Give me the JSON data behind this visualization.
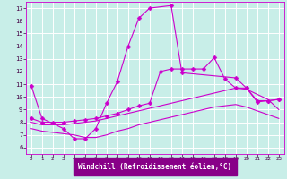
{
  "background_color": "#c8eee8",
  "plot_bg_color": "#c8eee8",
  "grid_color": "#ffffff",
  "line_color": "#cc00cc",
  "xlabel": "Windchill (Refroidissement éolien,°C)",
  "xlabel_bg": "#8800aa",
  "xlim": [
    -0.5,
    23.5
  ],
  "ylim": [
    5.5,
    17.5
  ],
  "xticks": [
    0,
    1,
    2,
    3,
    4,
    5,
    6,
    7,
    8,
    9,
    10,
    11,
    12,
    13,
    14,
    15,
    16,
    17,
    18,
    19,
    20,
    21,
    22,
    23
  ],
  "yticks": [
    6,
    7,
    8,
    9,
    10,
    11,
    12,
    13,
    14,
    15,
    16,
    17
  ],
  "curve1_x": [
    0,
    1,
    3,
    4,
    5,
    6,
    7,
    8,
    9,
    10,
    11,
    13,
    14,
    19,
    20,
    21,
    22,
    23
  ],
  "curve1_y": [
    10.9,
    8.3,
    7.5,
    6.7,
    6.7,
    7.5,
    9.5,
    11.2,
    14.0,
    16.2,
    17.0,
    17.2,
    11.9,
    11.5,
    10.7,
    9.6,
    9.7,
    9.8
  ],
  "curve2_x": [
    0,
    1,
    2,
    3,
    4,
    5,
    6,
    7,
    8,
    9,
    10,
    11,
    12,
    13,
    14,
    15,
    16,
    17,
    18,
    19,
    20,
    21,
    22,
    23
  ],
  "curve2_y": [
    8.3,
    8.0,
    8.0,
    8.0,
    8.1,
    8.2,
    8.3,
    8.5,
    8.7,
    9.0,
    9.3,
    9.5,
    12.0,
    12.2,
    12.2,
    12.2,
    12.2,
    13.1,
    11.4,
    10.7,
    10.7,
    9.7,
    9.7,
    9.8
  ],
  "curve3_x": [
    0,
    1,
    2,
    3,
    4,
    5,
    6,
    7,
    8,
    9,
    10,
    11,
    12,
    13,
    14,
    15,
    16,
    17,
    18,
    19,
    20,
    21,
    22,
    23
  ],
  "curve3_y": [
    8.0,
    7.8,
    7.8,
    7.8,
    7.9,
    8.0,
    8.1,
    8.3,
    8.5,
    8.7,
    8.9,
    9.1,
    9.3,
    9.5,
    9.7,
    9.9,
    10.1,
    10.3,
    10.5,
    10.7,
    10.6,
    10.2,
    9.8,
    9.0
  ],
  "curve4_x": [
    0,
    1,
    2,
    3,
    4,
    5,
    6,
    7,
    8,
    9,
    10,
    11,
    12,
    13,
    14,
    15,
    16,
    17,
    18,
    19,
    20,
    21,
    22,
    23
  ],
  "curve4_y": [
    7.5,
    7.3,
    7.2,
    7.1,
    7.0,
    6.8,
    6.8,
    7.0,
    7.3,
    7.5,
    7.8,
    8.0,
    8.2,
    8.4,
    8.6,
    8.8,
    9.0,
    9.2,
    9.3,
    9.4,
    9.2,
    8.9,
    8.6,
    8.3
  ]
}
